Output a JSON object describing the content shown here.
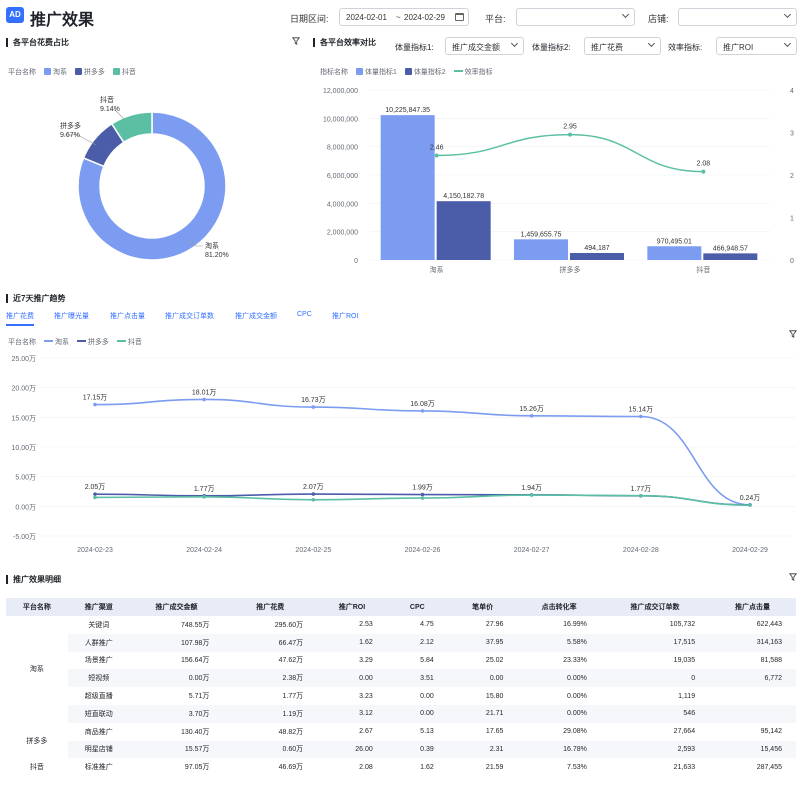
{
  "header": {
    "logo": "AD",
    "title": "推广效果",
    "date_label": "日期区间:",
    "date_start": "2024-02-01",
    "date_sep": "~",
    "date_end": "2024-02-29",
    "platform_label": "平台:",
    "platform_value": "",
    "store_label": "店铺:",
    "store_value": ""
  },
  "pie_section": {
    "title": "各平台花费占比",
    "legend_title": "平台名称",
    "legend": [
      "淘系",
      "拼多多",
      "抖音"
    ],
    "labels": [
      {
        "name": "淘系",
        "pct": "81.20%"
      },
      {
        "name": "拼多多",
        "pct": "9.67%"
      },
      {
        "name": "抖音",
        "pct": "9.14%"
      }
    ]
  },
  "bar_section": {
    "title": "各平台效率对比",
    "metric1_label": "体量指标1:",
    "metric1_value": "推广成交金额",
    "metric2_label": "体量指标2:",
    "metric2_value": "推广花费",
    "eff_label": "效率指标:",
    "eff_value": "推广ROI",
    "legend_title": "指标名称",
    "legend": [
      "体量指标1",
      "体量指标2",
      "效率指标"
    ]
  },
  "trend_section": {
    "title": "近7天推广趋势",
    "tabs": [
      "推广花费",
      "推广曝光量",
      "推广点击量",
      "推广成交订单数",
      "推广成交金额",
      "CPC",
      "推广ROI"
    ],
    "legend_title": "平台名称",
    "legend": [
      "淘系",
      "拼多多",
      "抖音"
    ]
  },
  "detail_section": {
    "title": "推广效果明细",
    "columns": [
      "平台名称",
      "推广渠道",
      "推广成交金额",
      "推广花费",
      "推广ROI",
      "CPC",
      "笔单价",
      "点击转化率",
      "推广成交订单数",
      "推广点击量"
    ],
    "rows": [
      [
        "淘系",
        "关键词",
        "748.55万",
        "295.60万",
        "2.53",
        "4.75",
        "27.96",
        "16.99%",
        "105,732",
        "622,443"
      ],
      [
        "",
        "人群推广",
        "107.98万",
        "66.47万",
        "1.62",
        "2.12",
        "37.95",
        "5.58%",
        "17,515",
        "314,163"
      ],
      [
        "",
        "场景推广",
        "156.64万",
        "47.62万",
        "3.29",
        "5.84",
        "25.02",
        "23.33%",
        "19,035",
        "81,588"
      ],
      [
        "",
        "短视频",
        "0.00万",
        "2.38万",
        "0.00",
        "3.51",
        "0.00",
        "0.00%",
        "0",
        "6,772"
      ],
      [
        "",
        "超级直播",
        "5.71万",
        "1.77万",
        "3.23",
        "0.00",
        "15.80",
        "0.00%",
        "1,119",
        ""
      ],
      [
        "",
        "短直联动",
        "3.70万",
        "1.19万",
        "3.12",
        "0.00",
        "21.71",
        "0.00%",
        "546",
        ""
      ],
      [
        "拼多多",
        "商品推广",
        "130.40万",
        "48.82万",
        "2.67",
        "5.13",
        "17.65",
        "29.08%",
        "27,664",
        "95,142"
      ],
      [
        "",
        "明星店铺",
        "15.57万",
        "0.60万",
        "26.00",
        "0.39",
        "2.31",
        "16.78%",
        "2,593",
        "15,456"
      ],
      [
        "抖音",
        "标准推广",
        "97.05万",
        "46.69万",
        "2.08",
        "1.62",
        "21.59",
        "7.53%",
        "21,633",
        "287,455"
      ]
    ]
  },
  "chart_data": [
    {
      "type": "pie",
      "categories": [
        "淘系",
        "拼多多",
        "抖音"
      ],
      "values": [
        81.2,
        9.67,
        9.14
      ],
      "colors": [
        "#7b9cf0",
        "#4b5ca8",
        "#5bbfa4"
      ]
    },
    {
      "type": "bar",
      "categories": [
        "淘系",
        "拼多多",
        "抖音"
      ],
      "series": [
        {
          "name": "体量指标1",
          "values": [
            10225847.35,
            1459655.75,
            970495.01
          ],
          "labels": [
            "10,225,847.35",
            "1,459,655.75",
            "970,495.01"
          ]
        },
        {
          "name": "体量指标2",
          "values": [
            4150182.78,
            494187,
            466948.57
          ],
          "labels": [
            "4,150,182.78",
            "494,187",
            "466,948.57"
          ]
        },
        {
          "name": "效率指标",
          "type": "line",
          "axis": "right",
          "values": [
            2.46,
            2.95,
            2.08
          ],
          "labels": [
            "2.46",
            "2.95",
            "2.08"
          ]
        }
      ],
      "ylim": [
        0,
        12000000
      ],
      "y_ticks": [
        "0",
        "2,000,000",
        "4,000,000",
        "6,000,000",
        "8,000,000",
        "10,000,000",
        "12,000,000"
      ],
      "y2lim": [
        0,
        4
      ],
      "y2_ticks": [
        "0",
        "1",
        "2",
        "3",
        "4"
      ]
    },
    {
      "type": "line",
      "x": [
        "2024-02-23",
        "2024-02-24",
        "2024-02-25",
        "2024-02-26",
        "2024-02-27",
        "2024-02-28",
        "2024-02-29"
      ],
      "series": [
        {
          "name": "淘系",
          "values": [
            17.15,
            18.01,
            16.73,
            16.08,
            15.26,
            15.14,
            0.24
          ],
          "labels": [
            "17.15万",
            "18.01万",
            "16.73万",
            "16.08万",
            "15.26万",
            "15.14万",
            "0.24万"
          ]
        },
        {
          "name": "拼多多",
          "values": [
            2.05,
            1.77,
            2.07,
            1.99,
            1.94,
            1.77,
            0.24
          ],
          "labels": [
            "2.05万",
            "1.77万",
            "2.07万",
            "1.99万",
            "1.94万",
            "1.77万",
            ""
          ]
        },
        {
          "name": "抖音",
          "values": [
            1.5,
            1.6,
            1.1,
            1.4,
            1.9,
            1.8,
            0.2
          ]
        }
      ],
      "ylim": [
        -5,
        25
      ],
      "y_ticks": [
        "-5.00万",
        "0.00万",
        "5.00万",
        "10.00万",
        "15.00万",
        "20.00万",
        "25.00万"
      ]
    }
  ],
  "colors": {
    "taoxi": "#7b9cf0",
    "pdd": "#4b5ca8",
    "douyin": "#5bbfa4",
    "accent": "#3370ff"
  }
}
